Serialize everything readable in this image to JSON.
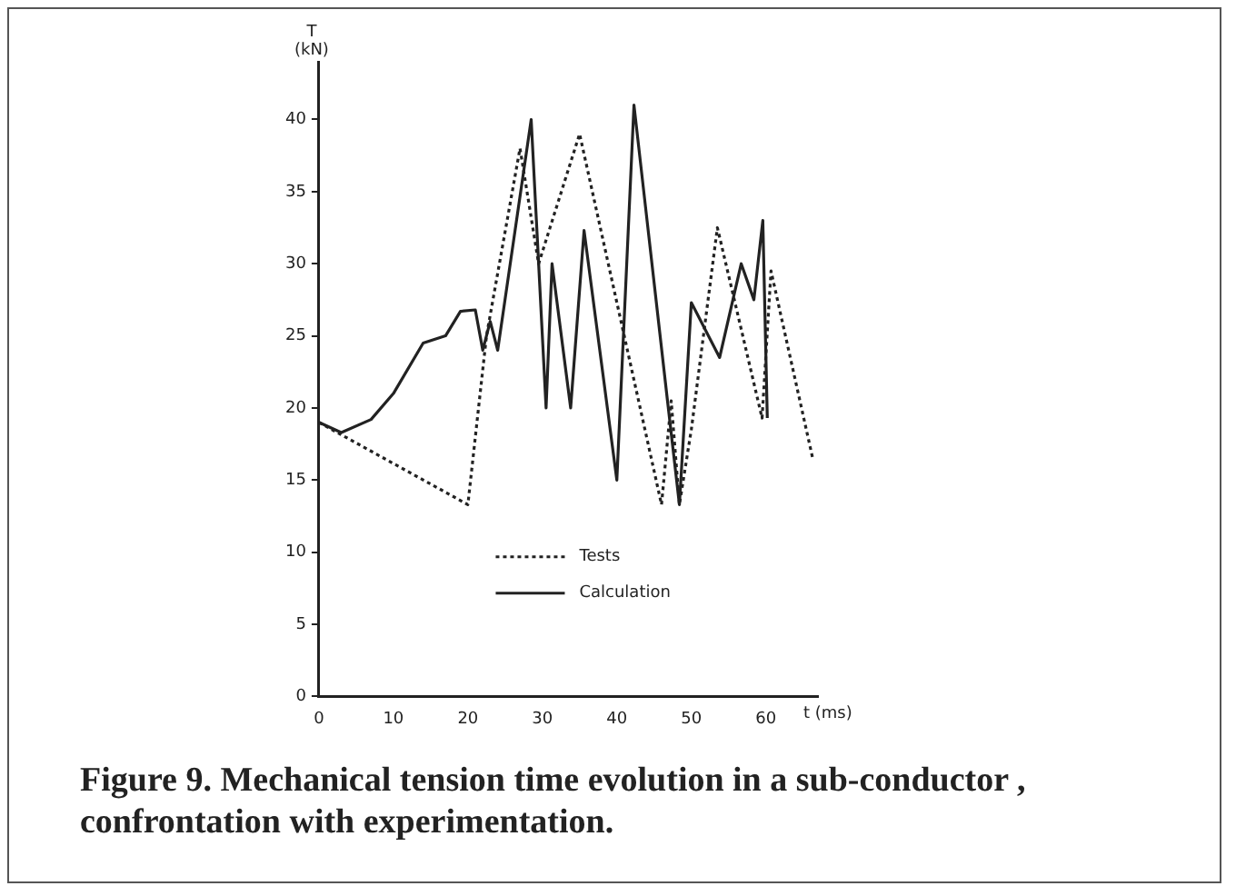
{
  "chart_data": {
    "type": "line",
    "title": "Figure 9.  Mechanical tension time evolution in a sub-conductor , confrontation with experimentation.",
    "xlabel": "t (ms)",
    "ylabel": "T (kN)",
    "xlim": [
      0,
      67
    ],
    "ylim": [
      0,
      44
    ],
    "xticks": [
      0,
      10,
      20,
      30,
      40,
      50,
      60
    ],
    "yticks": [
      0,
      5,
      10,
      15,
      20,
      25,
      30,
      35,
      40
    ],
    "grid": false,
    "legend": "bottom",
    "marker": "none",
    "series": [
      {
        "name": "Tests",
        "color": "#222222",
        "line_style": "dotted",
        "x": [
          0,
          20,
          22.5,
          27,
          29.5,
          35,
          46,
          47.3,
          48.4,
          50,
          53.5,
          59.5,
          60.7,
          66.3
        ],
        "values": [
          19,
          13.3,
          25,
          38,
          30,
          39,
          13.3,
          20.5,
          13.3,
          18.5,
          32.5,
          19.3,
          29.5,
          16.5
        ]
      },
      {
        "name": "Calculation",
        "color": "#222222",
        "line_style": "solid",
        "x": [
          0,
          3,
          7,
          10,
          14,
          17,
          19,
          21,
          22,
          23,
          24,
          28.5,
          30.5,
          31.3,
          33.8,
          35.6,
          40,
          42.3,
          46.8,
          48.4,
          50,
          53.8,
          56.7,
          58.4,
          59.6,
          60.2
        ],
        "values": [
          19,
          18.3,
          19.2,
          21,
          24.5,
          25,
          26.7,
          26.8,
          24,
          26,
          24,
          40,
          20,
          30,
          20,
          32.3,
          15,
          41,
          20.5,
          13.3,
          27.3,
          23.5,
          30,
          27.5,
          33,
          19.3
        ]
      }
    ]
  }
}
